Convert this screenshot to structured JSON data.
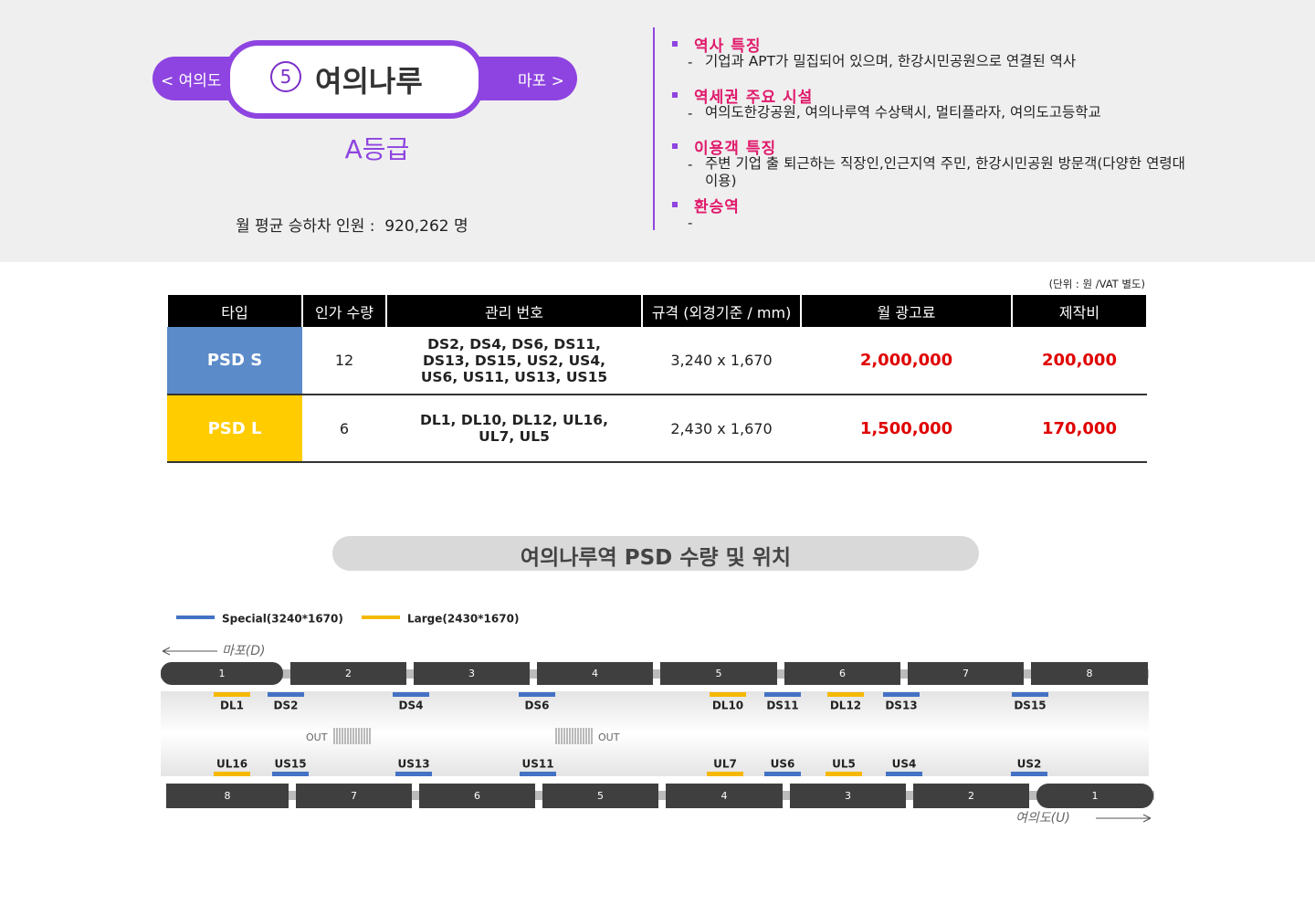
{
  "header": {
    "prev": "< 여의도",
    "line": 5,
    "station": "여의나루",
    "next": "마포 >",
    "grade": "A등급",
    "ridership_label": "월 평균 승하차 인원 :",
    "ridership": "920,262 명"
  },
  "info": [
    {
      "title": "역사 특징",
      "items": [
        "기업과 APT가 밀집되어 있으며, 한강시민공원으로 연결된 역사"
      ]
    },
    {
      "title": "역세권 주요 시설",
      "items": [
        "여의도한강공원, 여의나루역 수상택시, 멀티플라자, 여의도고등학교"
      ]
    },
    {
      "title": "이용객 특징",
      "items": [
        "주변 기업 출 퇴근하는 직장인,인근지역 주민, 한강시민공원 방문객(다양한 연령대 이용)"
      ]
    },
    {
      "title": "환승역",
      "items": []
    }
  ],
  "table": {
    "unit_note": "(단위 : 원 /VAT 별도)",
    "headers": [
      "타입",
      "인가 수량",
      "관리 번호",
      "규격 (외경기준 / mm)",
      "월 광고료",
      "제작비"
    ],
    "rows": [
      [
        "PSD S",
        12,
        "DS2, DS4, DS6, DS11, DS13, DS15, US2, US4, US6, US11, US13, US15",
        "3,240 x 1,670",
        "2,000,000",
        "200,000"
      ],
      [
        "PSD L",
        6,
        "DL1, DL10, DL12, UL16, UL7, UL5",
        "2,430 x 1,670",
        "1,500,000",
        "170,000"
      ]
    ]
  },
  "diagram": {
    "title": "여의나루역  PSD 수량 및 위치",
    "legend": [
      {
        "label": "Special(3240*1670)",
        "color": "#4472c4"
      },
      {
        "label": "Large(2430*1670)",
        "color": "#f5b800"
      }
    ],
    "top_direction": "마포(D)",
    "bottom_direction": "여의도(U)",
    "exit_label": "OUT",
    "top_cars": [
      1,
      2,
      3,
      4,
      5,
      6,
      7,
      8
    ],
    "bottom_cars": [
      8,
      7,
      6,
      5,
      4,
      3,
      2,
      1
    ],
    "top_doors": [
      {
        "label": "DL1",
        "color": "#f5b800"
      },
      {
        "label": "DS2",
        "color": "#4472c4"
      },
      {
        "label": "DS4",
        "color": "#4472c4"
      },
      {
        "label": "DS6",
        "color": "#4472c4"
      },
      {
        "label": "DL10",
        "color": "#f5b800"
      },
      {
        "label": "DS11",
        "color": "#4472c4"
      },
      {
        "label": "DL12",
        "color": "#f5b800"
      },
      {
        "label": "DS13",
        "color": "#4472c4"
      },
      {
        "label": "DS15",
        "color": "#4472c4"
      }
    ],
    "bottom_doors": [
      {
        "label": "UL16",
        "color": "#f5b800"
      },
      {
        "label": "US15",
        "color": "#4472c4"
      },
      {
        "label": "US13",
        "color": "#4472c4"
      },
      {
        "label": "US11",
        "color": "#4472c4"
      },
      {
        "label": "UL7",
        "color": "#f5b800"
      },
      {
        "label": "US6",
        "color": "#4472c4"
      },
      {
        "label": "UL5",
        "color": "#f5b800"
      },
      {
        "label": "US4",
        "color": "#4472c4"
      },
      {
        "label": "US2",
        "color": "#4472c4"
      }
    ]
  }
}
